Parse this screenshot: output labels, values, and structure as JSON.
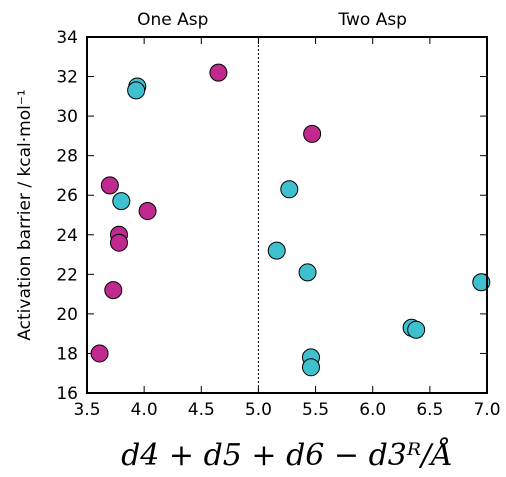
{
  "chart_data": {
    "type": "scatter",
    "title": "",
    "xlabel": "d4 + d5 + d6 − d3ᴿ/Å",
    "ylabel": "Activation barrier / kcal·mol⁻¹",
    "xlim": [
      3.5,
      7.0
    ],
    "ylim": [
      16,
      34
    ],
    "xticks": [
      "3.5",
      "4.0",
      "4.5",
      "5.0",
      "5.5",
      "6.0",
      "6.5",
      "7.0"
    ],
    "yticks": [
      "16",
      "18",
      "20",
      "22",
      "24",
      "26",
      "28",
      "30",
      "32",
      "34"
    ],
    "grid": false,
    "divider_x": 5.0,
    "regions": [
      {
        "label": "One Asp"
      },
      {
        "label": "Two Asp"
      }
    ],
    "series": [
      {
        "color": "#c02a8f",
        "points": [
          {
            "x": 4.65,
            "y": 32.2
          },
          {
            "x": 3.7,
            "y": 26.5
          },
          {
            "x": 4.03,
            "y": 25.2
          },
          {
            "x": 3.78,
            "y": 24.0
          },
          {
            "x": 3.78,
            "y": 23.6
          },
          {
            "x": 3.73,
            "y": 21.2
          },
          {
            "x": 3.61,
            "y": 18.0
          },
          {
            "x": 5.47,
            "y": 29.1
          }
        ]
      },
      {
        "color": "#3fc0cf",
        "points": [
          {
            "x": 3.94,
            "y": 31.5
          },
          {
            "x": 3.93,
            "y": 31.3
          },
          {
            "x": 3.8,
            "y": 25.7
          },
          {
            "x": 5.27,
            "y": 26.3
          },
          {
            "x": 5.16,
            "y": 23.2
          },
          {
            "x": 5.43,
            "y": 22.1
          },
          {
            "x": 6.95,
            "y": 21.6
          },
          {
            "x": 6.34,
            "y": 19.3
          },
          {
            "x": 6.38,
            "y": 19.2
          },
          {
            "x": 5.46,
            "y": 17.8
          },
          {
            "x": 5.46,
            "y": 17.3
          }
        ]
      }
    ]
  }
}
